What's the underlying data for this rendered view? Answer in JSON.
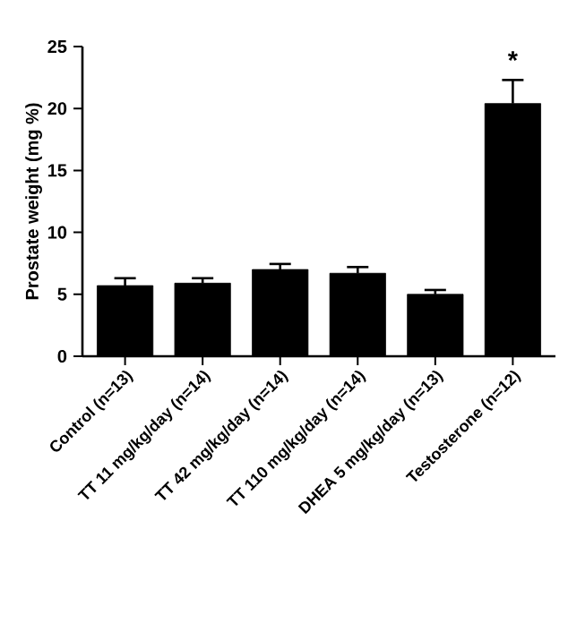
{
  "chart_data": {
    "type": "bar",
    "ylabel": "Prostate weight (mg %)",
    "categories": [
      "Control (n=13)",
      "TT 11 mg/kg/day (n=14)",
      "TT 42 mg/kg/day (n=14)",
      "TT 110 mg/kg/day (n=14)",
      "DHEA 5 mg/kg/day (n=13)",
      "Testosterone (n=12)"
    ],
    "values": [
      5.7,
      5.9,
      7.0,
      6.7,
      5.0,
      20.4
    ],
    "errors": [
      0.6,
      0.4,
      0.45,
      0.5,
      0.35,
      1.9
    ],
    "color": "#000000",
    "ylim": [
      0,
      25
    ],
    "yticks": [
      0,
      5,
      10,
      15,
      20,
      25
    ],
    "annotations": [
      "*"
    ]
  }
}
